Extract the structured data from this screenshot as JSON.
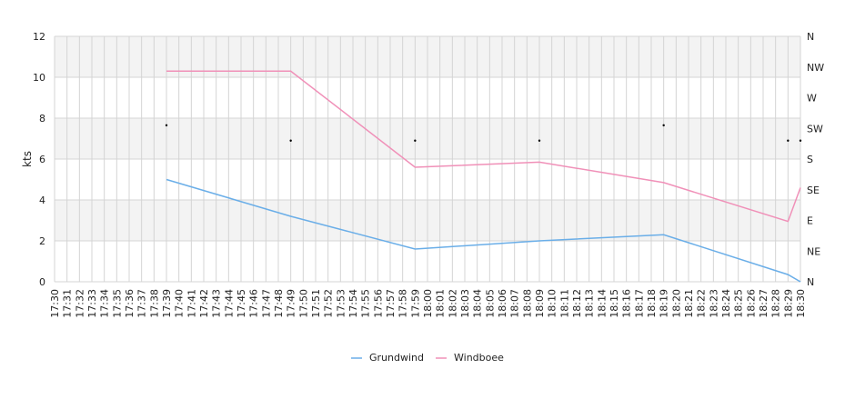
{
  "chart_data": {
    "type": "line",
    "ylabel": "kts",
    "ylim": [
      0,
      12
    ],
    "yticks": [
      "0",
      "2",
      "4",
      "6",
      "8",
      "10",
      "12"
    ],
    "y2ticks": [
      "N",
      "NE",
      "E",
      "SE",
      "S",
      "SW",
      "W",
      "NW",
      "N"
    ],
    "x_categories": [
      "17:30",
      "17:31",
      "17:32",
      "17:33",
      "17:34",
      "17:35",
      "17:36",
      "17:37",
      "17:38",
      "17:39",
      "17:40",
      "17:41",
      "17:42",
      "17:43",
      "17:44",
      "17:45",
      "17:46",
      "17:47",
      "17:48",
      "17:49",
      "17:50",
      "17:51",
      "17:52",
      "17:53",
      "17:54",
      "17:55",
      "17:56",
      "17:57",
      "17:58",
      "17:59",
      "18:00",
      "18:01",
      "18:02",
      "18:03",
      "18:04",
      "18:05",
      "18:06",
      "18:07",
      "18:08",
      "18:09",
      "18:10",
      "18:11",
      "18:12",
      "18:13",
      "18:14",
      "18:15",
      "18:16",
      "18:17",
      "18:18",
      "18:19",
      "18:20",
      "18:21",
      "18:22",
      "18:23",
      "18:24",
      "18:25",
      "18:26",
      "18:27",
      "18:28",
      "18:29",
      "18:30"
    ],
    "grid": true,
    "legend_position": "bottom",
    "series": [
      {
        "name": "Grundwind",
        "color": "#6aaee8",
        "points": [
          [
            9,
            5.0
          ],
          [
            19,
            3.2
          ],
          [
            29,
            1.6
          ],
          [
            39,
            2.0
          ],
          [
            49,
            2.3
          ],
          [
            59,
            0.35
          ],
          [
            60,
            0.0
          ]
        ]
      },
      {
        "name": "Windboee",
        "color": "#f090b8",
        "points": [
          [
            9,
            10.3
          ],
          [
            19,
            10.3
          ],
          [
            29,
            5.6
          ],
          [
            39,
            5.85
          ],
          [
            49,
            4.85
          ],
          [
            59,
            2.95
          ],
          [
            60,
            4.6
          ]
        ]
      }
    ],
    "direction_markers": [
      [
        9,
        7.65
      ],
      [
        19,
        6.9
      ],
      [
        29,
        6.9
      ],
      [
        39,
        6.9
      ],
      [
        49,
        7.65
      ],
      [
        59,
        6.9
      ],
      [
        60,
        6.9
      ]
    ]
  }
}
